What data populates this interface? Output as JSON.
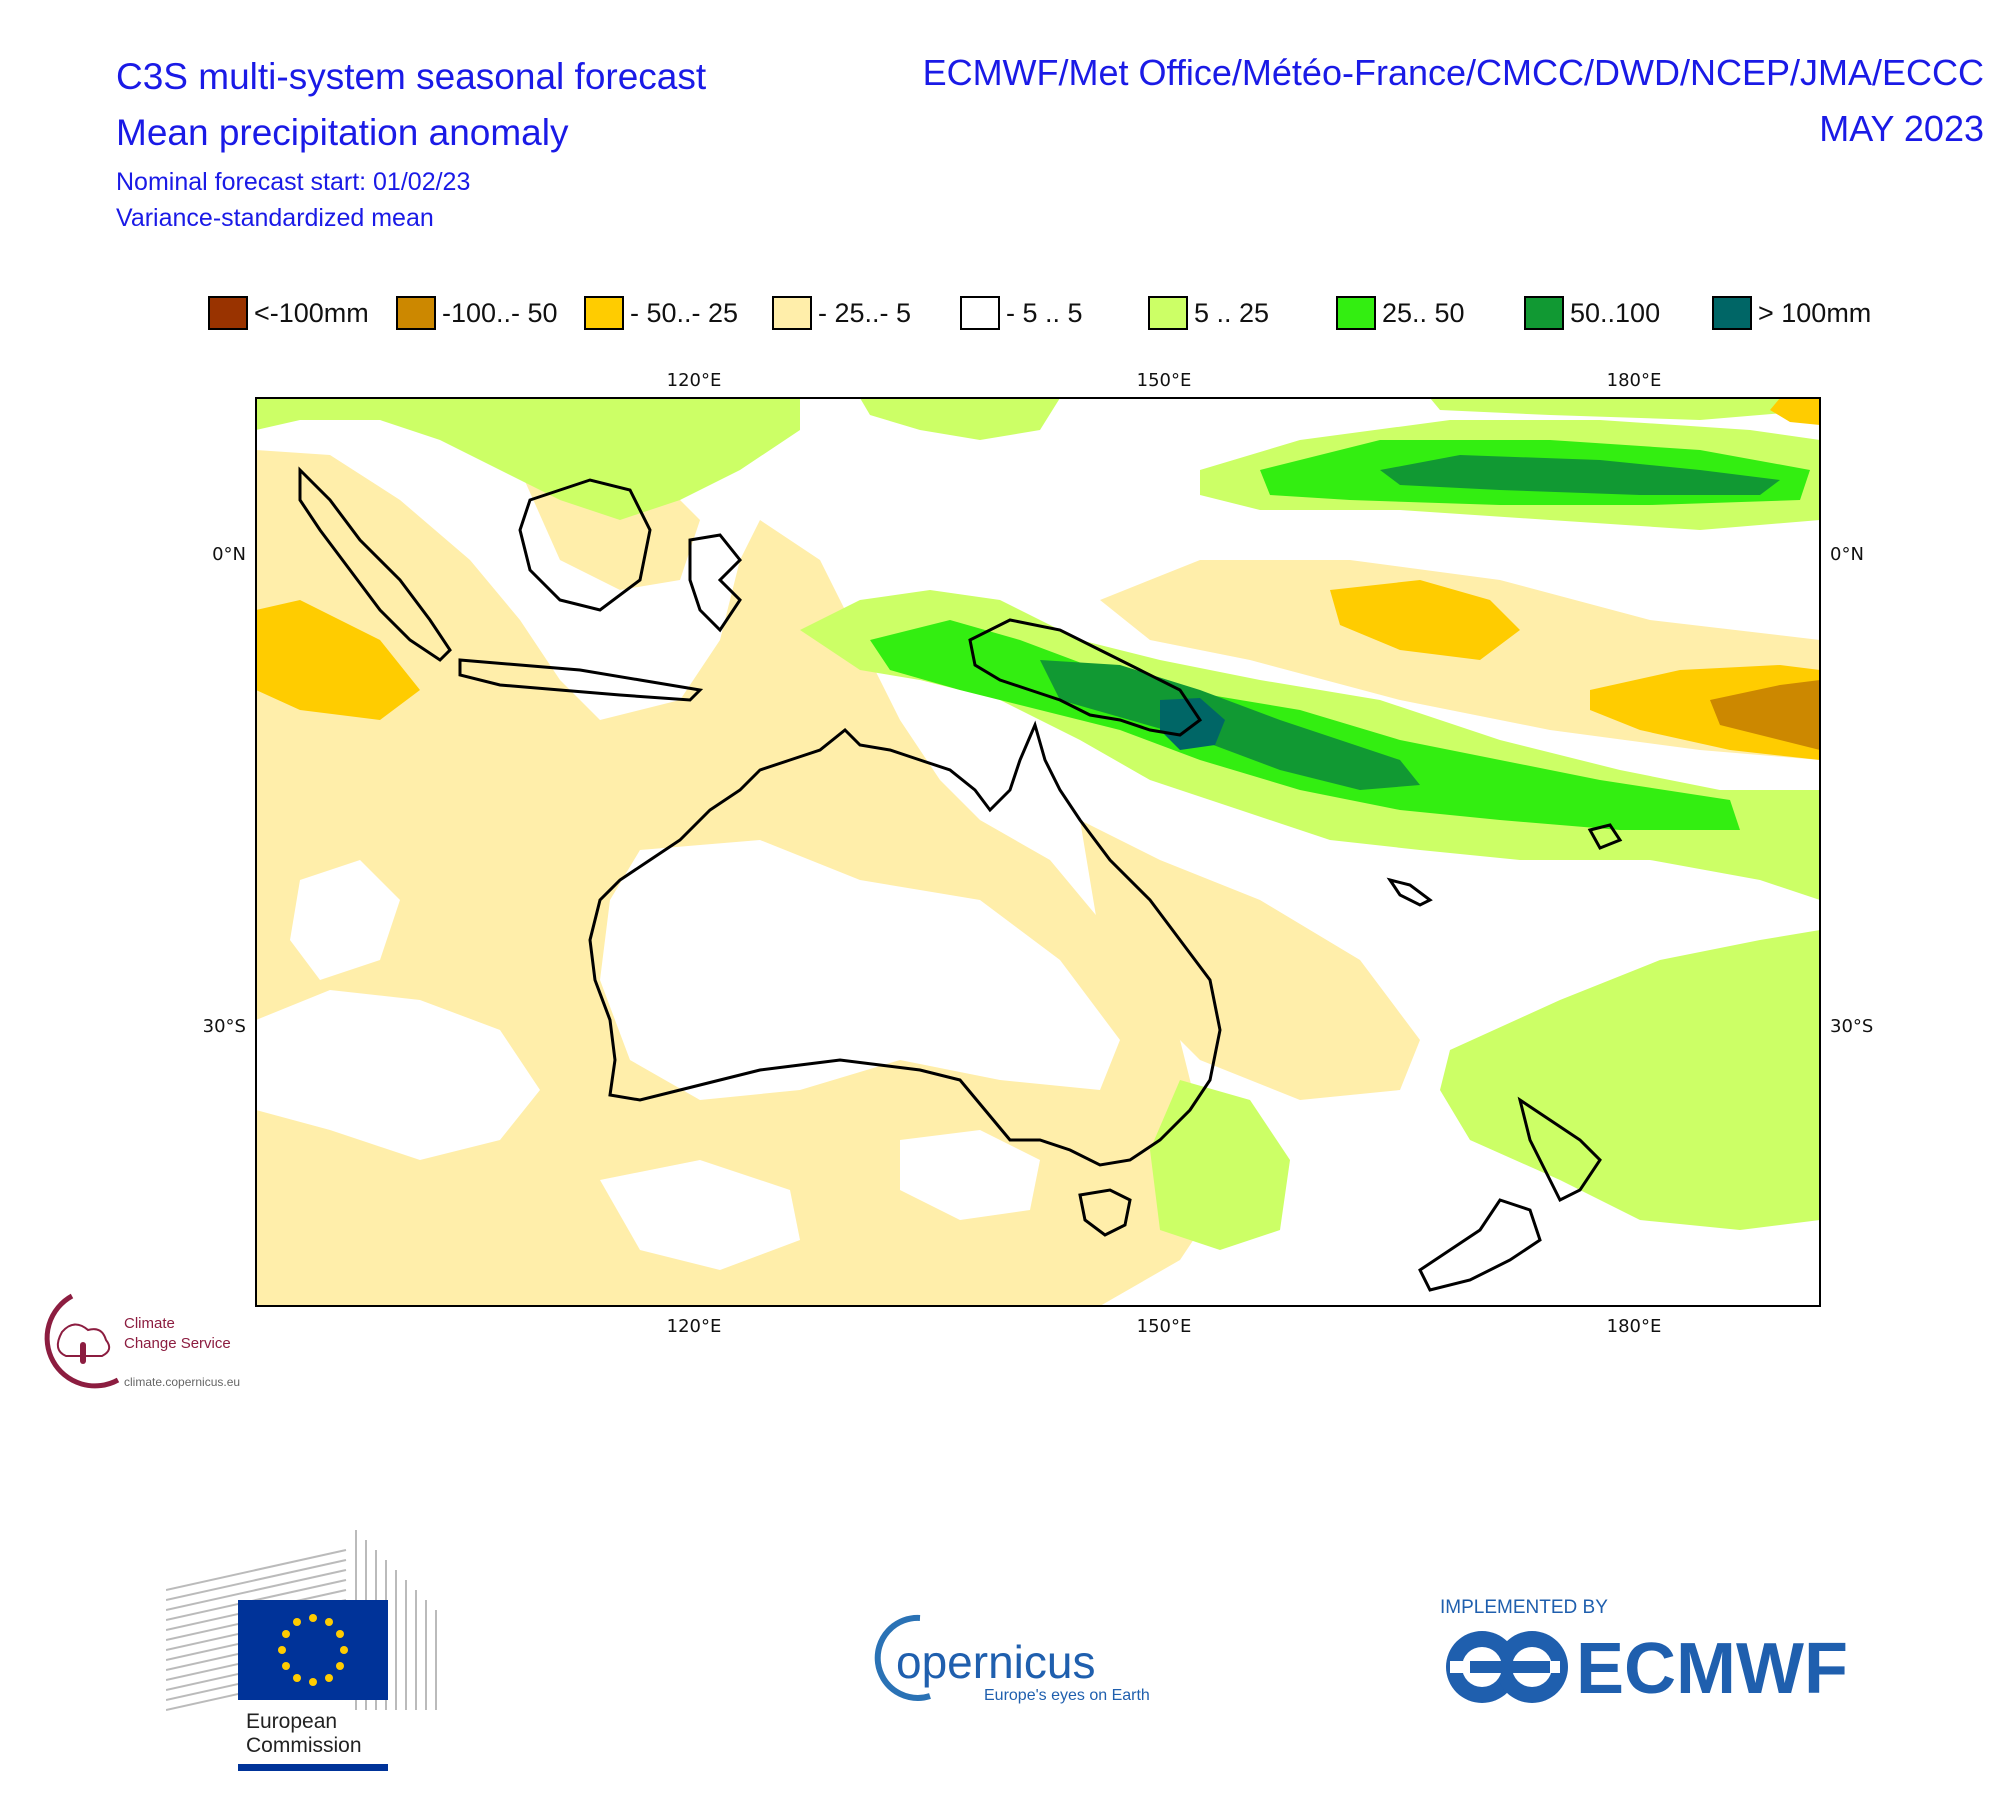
{
  "header": {
    "title_line1": "C3S multi-system seasonal forecast",
    "title_line2": "Mean precipitation anomaly",
    "subtitle_line1": "Nominal forecast start: 01/02/23",
    "subtitle_line2": "Variance-standardized mean",
    "centres": "ECMWF/Met Office/Météo-France/CMCC/DWD/NCEP/JMA/ECCC",
    "valid_month": "MAY 2023"
  },
  "legend": [
    {
      "label": "<-100mm",
      "color": "#993300"
    },
    {
      "label": "-100..- 50",
      "color": "#cc8800"
    },
    {
      "label": "- 50..- 25",
      "color": "#ffcc00"
    },
    {
      "label": "- 25..- 5",
      "color": "#ffeeaa"
    },
    {
      "label": "- 5 .. 5",
      "color": "#ffffff"
    },
    {
      "label": "5 .. 25",
      "color": "#ccff66"
    },
    {
      "label": "25.. 50",
      "color": "#33ee11"
    },
    {
      "label": "50..100",
      "color": "#119933"
    },
    {
      "label": "> 100mm",
      "color": "#006666"
    }
  ],
  "map": {
    "lon_ticks": [
      "120°E",
      "150°E",
      "180°E"
    ],
    "lat_ticks": [
      "0°N",
      "30°S"
    ]
  },
  "logos": {
    "c3s_line1": "Climate",
    "c3s_line2": "Change Service",
    "c3s_url": "climate.copernicus.eu",
    "ec_line1": "European",
    "ec_line2": "Commission",
    "copernicus_name": "opernicus",
    "copernicus_tagline": "Europe's eyes on Earth",
    "implemented_by": "IMPLEMENTED BY",
    "ecmwf_name": "ECMWF"
  }
}
